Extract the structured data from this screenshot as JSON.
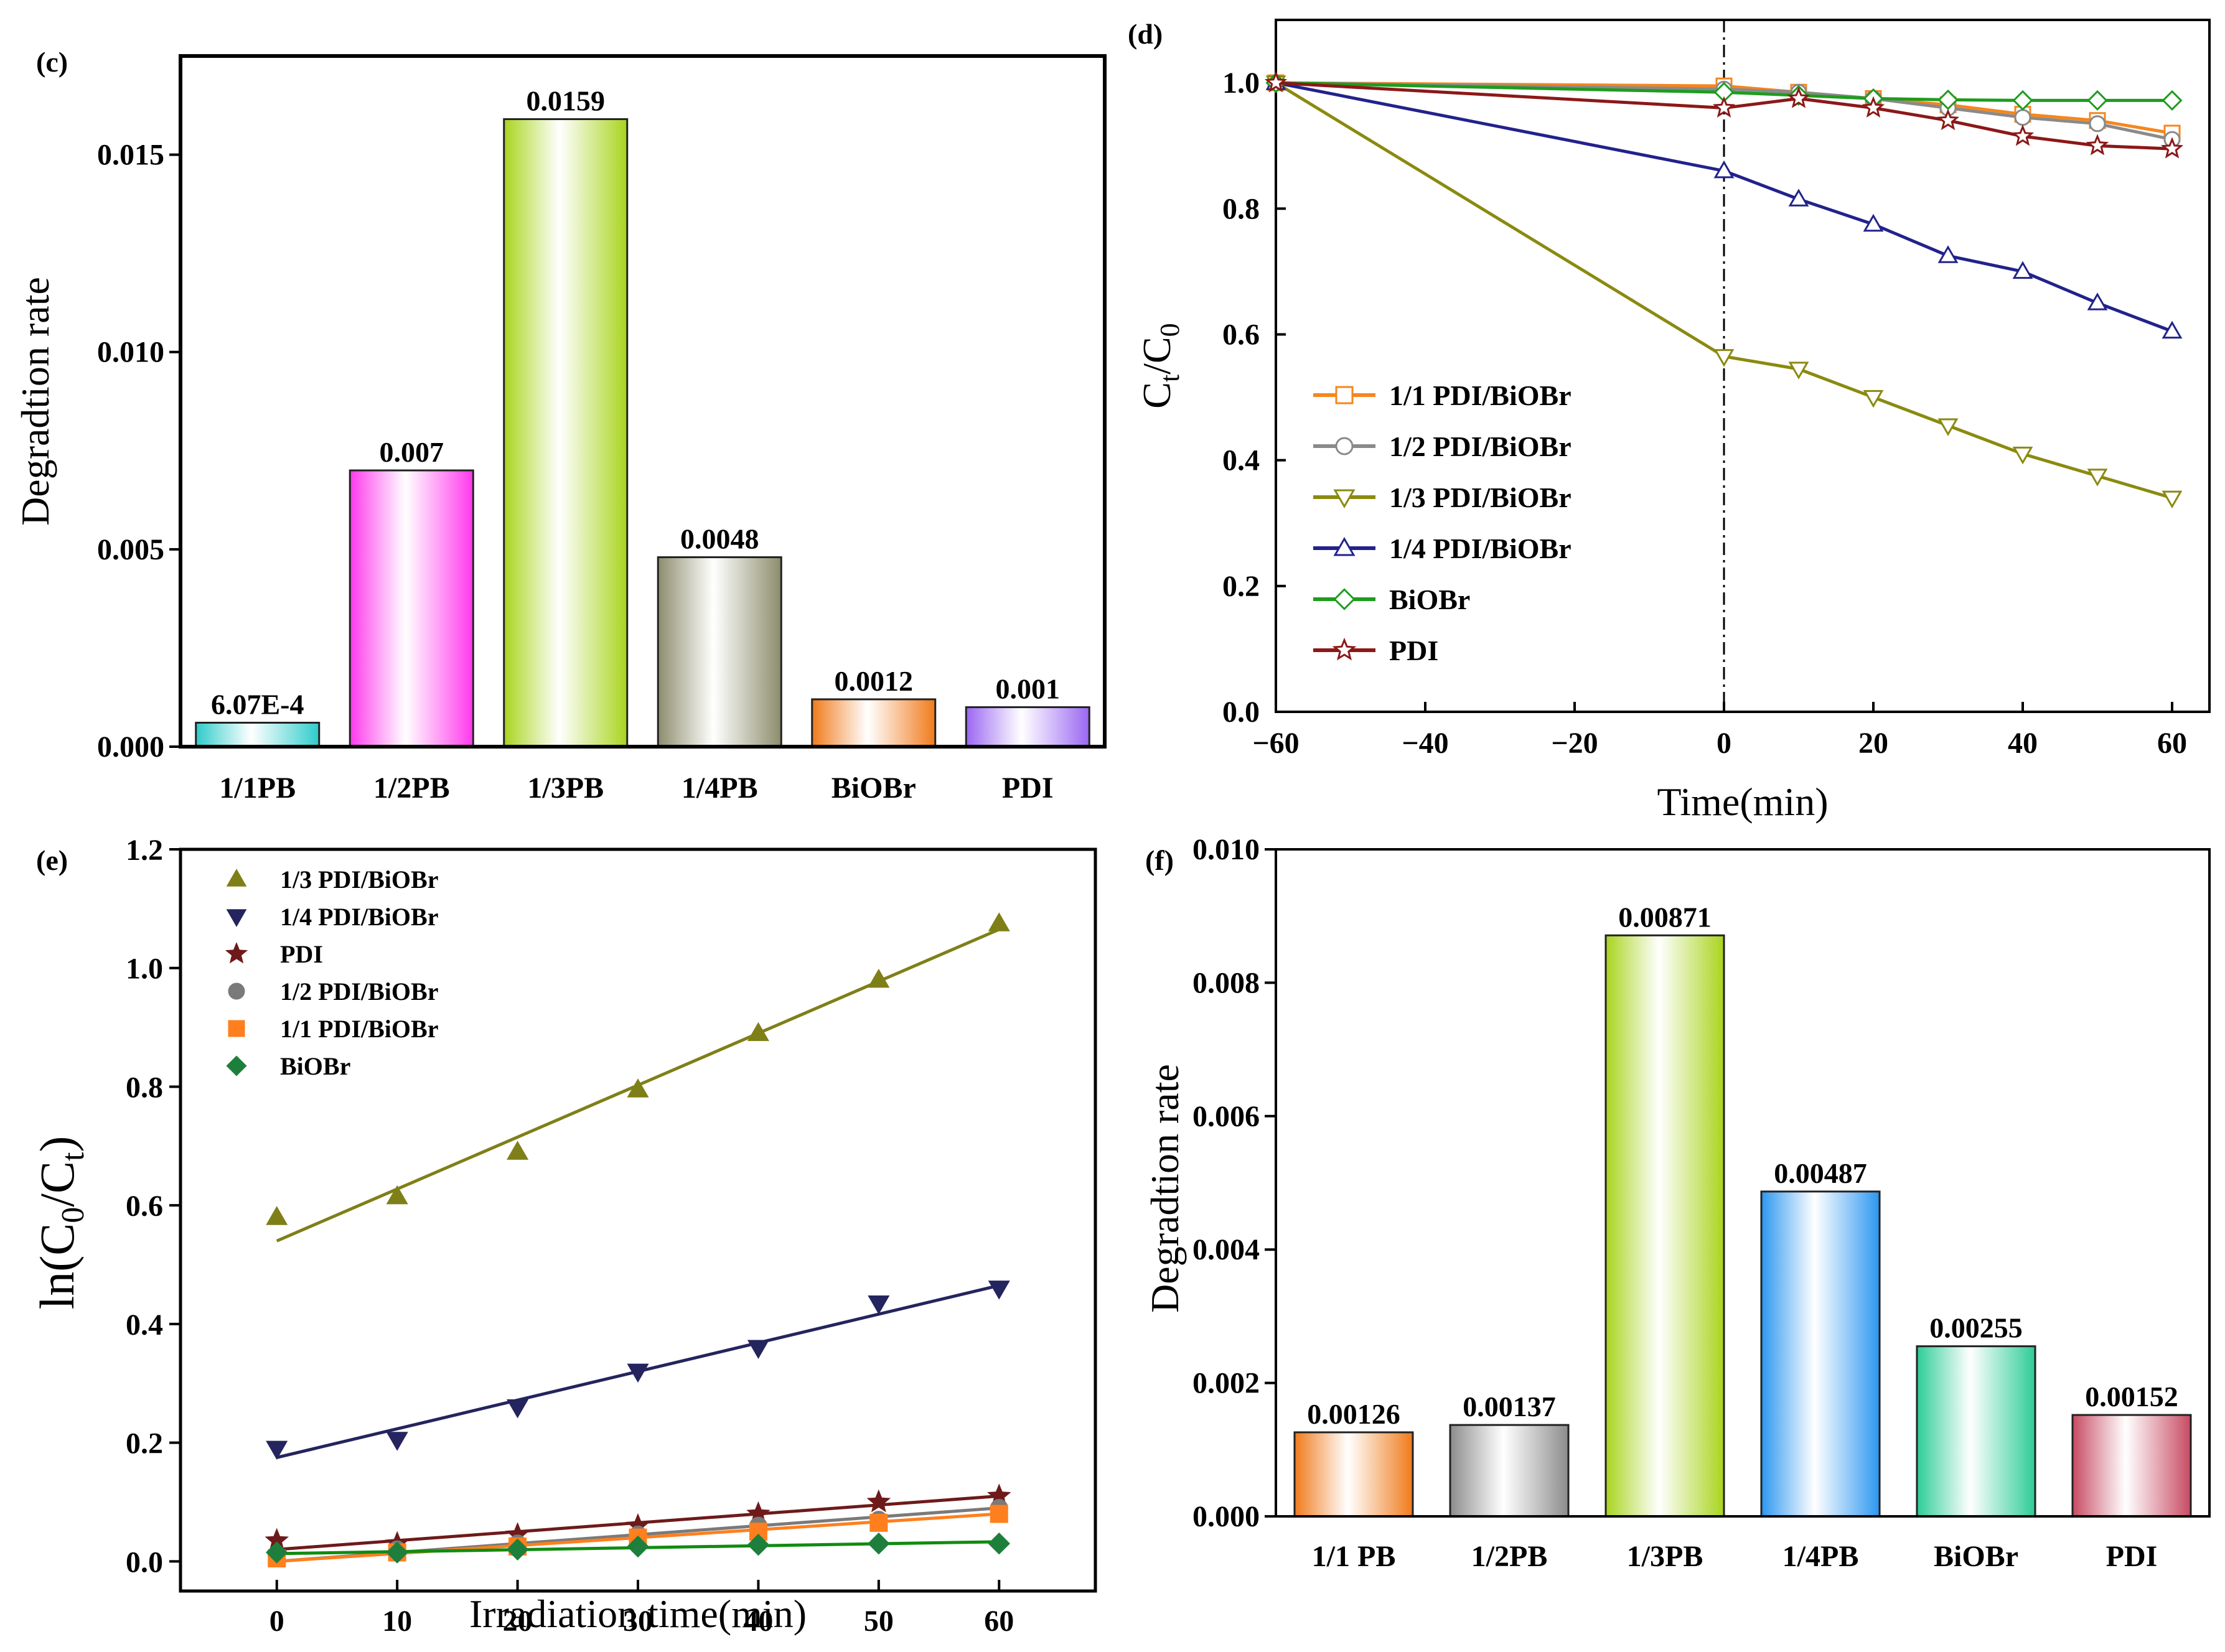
{
  "colors": {
    "cyan": "#2ecbcb",
    "magenta": "#ff38ec",
    "green": "#a8d41c",
    "olive": "#8c8c6c",
    "orange": "#f07a1a",
    "purple": "#9a66f2",
    "gray": "#8c8c8c",
    "blue": "#2b96f0",
    "teal": "#2ccc96",
    "rose": "#c74a62",
    "l_orange": "#f5861e",
    "l_gray": "#8a8a8a",
    "l_olive": "#8a8a10",
    "l_navy": "#22228c",
    "l_green": "#1e9c1e",
    "l_darkred": "#8c1818",
    "s_olive": "#7f7f18",
    "s_navy": "#24245e",
    "s_darkred": "#6e1a1a",
    "s_gray": "#7a7a7a",
    "s_orange": "#ff7f1e",
    "s_green": "#1e7f3c",
    "s_fit_green": "#0f8c0f"
  },
  "chart_data": [
    {
      "panel": "(c)",
      "type": "bar",
      "title": "",
      "xlabel": "",
      "ylabel": "Degradtion rate",
      "ylim": [
        0,
        0.0175
      ],
      "yticks": [
        "0.000",
        "0.005",
        "0.010",
        "0.015"
      ],
      "categories": [
        "1/1PB",
        "1/2PB",
        "1/3PB",
        "1/4PB",
        "BiOBr",
        "PDI"
      ],
      "values": [
        0.000607,
        0.007,
        0.0159,
        0.0048,
        0.0012,
        0.001
      ],
      "value_labels": [
        "6.07E-4",
        "0.007",
        "0.0159",
        "0.0048",
        "0.0012",
        "0.001"
      ],
      "bar_colors": [
        "cyan",
        "magenta",
        "green",
        "olive",
        "orange",
        "purple"
      ]
    },
    {
      "panel": "(d)",
      "type": "line",
      "xlabel": "Time(min)",
      "ylabel_main": "C",
      "ylabel_sub1": "t",
      "ylabel_mid": "/C",
      "ylabel_sub2": "0",
      "xlim": [
        -60,
        65
      ],
      "ylim": [
        0,
        1.1
      ],
      "xticks": [
        "-60",
        "-40",
        "-20",
        "0",
        "20",
        "40",
        "60"
      ],
      "yticks": [
        "0.0",
        "0.2",
        "0.4",
        "0.6",
        "0.8",
        "1.0"
      ],
      "x": [
        -60,
        0,
        10,
        20,
        30,
        40,
        50,
        60
      ],
      "series": [
        {
          "name": "1/1 PDI/BiOBr",
          "marker": "square",
          "color": "l_orange",
          "values": [
            1.0,
            0.995,
            0.985,
            0.975,
            0.965,
            0.95,
            0.94,
            0.92
          ]
        },
        {
          "name": "1/2 PDI/BiOBr",
          "marker": "circle",
          "color": "l_gray",
          "values": [
            1.0,
            0.99,
            0.985,
            0.975,
            0.96,
            0.945,
            0.935,
            0.91
          ]
        },
        {
          "name": "1/3 PDI/BiOBr",
          "marker": "tri-down",
          "color": "l_olive",
          "values": [
            1.0,
            0.565,
            0.545,
            0.5,
            0.455,
            0.41,
            0.375,
            0.34
          ]
        },
        {
          "name": "1/4 PDI/BiOBr",
          "marker": "tri-up",
          "color": "l_navy",
          "values": [
            1.0,
            0.86,
            0.815,
            0.775,
            0.725,
            0.7,
            0.65,
            0.605
          ]
        },
        {
          "name": "BiOBr",
          "marker": "diamond",
          "color": "l_green",
          "values": [
            1.0,
            0.985,
            0.98,
            0.975,
            0.973,
            0.972,
            0.972,
            0.972
          ]
        },
        {
          "name": "PDI",
          "marker": "star",
          "color": "l_darkred",
          "values": [
            1.0,
            0.96,
            0.975,
            0.96,
            0.94,
            0.915,
            0.9,
            0.895
          ]
        }
      ],
      "vline_x": 0
    },
    {
      "panel": "(e)",
      "type": "scatter",
      "xlabel": "Irradiation time(min)",
      "ylabel_main": "ln(C",
      "ylabel_sub1": "0",
      "ylabel_mid": "/C",
      "ylabel_sub2": "t",
      "ylabel_end": ")",
      "xlim": [
        -8,
        68
      ],
      "ylim": [
        -0.05,
        1.2
      ],
      "xticks": [
        "0",
        "10",
        "20",
        "30",
        "40",
        "50",
        "60"
      ],
      "yticks": [
        "0.0",
        "0.2",
        "0.4",
        "0.6",
        "0.8",
        "1.0",
        "1.2"
      ],
      "x": [
        0,
        10,
        20,
        30,
        40,
        50,
        60
      ],
      "series": [
        {
          "name": "1/3 PDI/BiOBr",
          "marker": "tri-up",
          "color": "s_olive",
          "values": [
            0.58,
            0.615,
            0.69,
            0.795,
            0.89,
            0.98,
            1.075
          ],
          "fit": [
            0.54,
            1.065
          ]
        },
        {
          "name": "1/4 PDI/BiOBr",
          "marker": "tri-down",
          "color": "s_navy",
          "values": [
            0.19,
            0.205,
            0.26,
            0.32,
            0.36,
            0.435,
            0.46
          ],
          "fit": [
            0.175,
            0.465
          ]
        },
        {
          "name": "PDI",
          "marker": "star",
          "color": "s_darkred",
          "values": [
            0.035,
            0.03,
            0.045,
            0.06,
            0.08,
            0.1,
            0.11
          ],
          "fit": [
            0.02,
            0.11
          ]
        },
        {
          "name": "1/2 PDI/BiOBr",
          "marker": "circle",
          "color": "s_gray",
          "values": [
            0.01,
            0.02,
            0.03,
            0.045,
            0.06,
            0.07,
            0.09
          ],
          "fit": [
            0.0,
            0.09
          ]
        },
        {
          "name": "1/1 PDI/BiOBr",
          "marker": "square",
          "color": "s_orange",
          "values": [
            0.005,
            0.015,
            0.025,
            0.04,
            0.05,
            0.065,
            0.08
          ],
          "fit": [
            0.0,
            0.08
          ]
        },
        {
          "name": "BiOBr",
          "marker": "diamond",
          "color": "s_green",
          "values": [
            0.015,
            0.015,
            0.02,
            0.025,
            0.028,
            0.03,
            0.03
          ],
          "fit": [
            0.013,
            0.033
          ]
        }
      ]
    },
    {
      "panel": "(f)",
      "type": "bar",
      "xlabel": "",
      "ylabel": "Degradtion rate",
      "ylim": [
        0,
        0.01
      ],
      "yticks": [
        "0.000",
        "0.002",
        "0.004",
        "0.006",
        "0.008",
        "0.010"
      ],
      "categories": [
        "1/1 PB",
        "1/2PB",
        "1/3PB",
        "1/4PB",
        "BiOBr",
        "PDI"
      ],
      "values": [
        0.00126,
        0.00137,
        0.00871,
        0.00487,
        0.00255,
        0.00152
      ],
      "value_labels": [
        "0.00126",
        "0.00137",
        "0.00871",
        "0.00487",
        "0.00255",
        "0.00152"
      ],
      "bar_colors": [
        "orange",
        "gray",
        "green",
        "blue",
        "teal",
        "rose"
      ]
    }
  ]
}
